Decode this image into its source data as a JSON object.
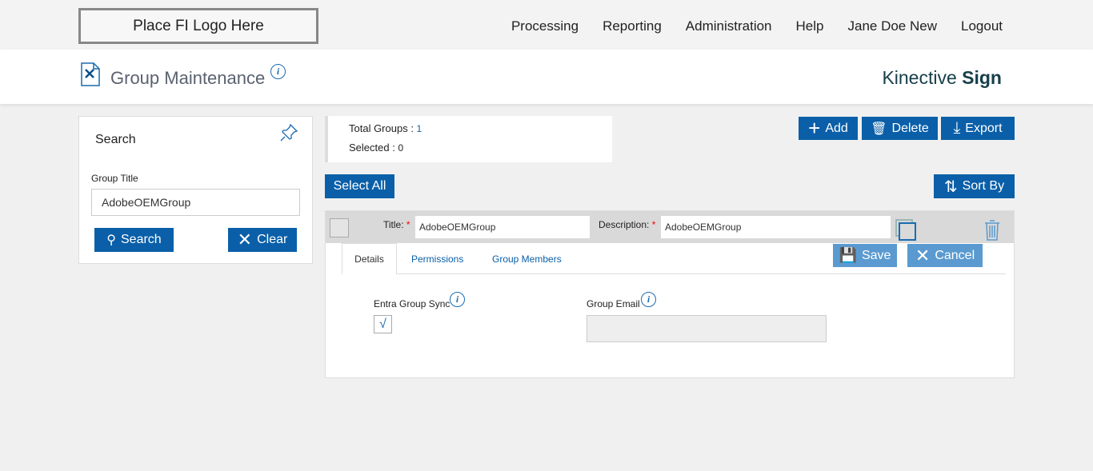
{
  "topbar": {
    "logo": "Place FI Logo Here",
    "nav": [
      "Processing",
      "Reporting",
      "Administration",
      "Help",
      "Jane Doe New",
      "Logout"
    ]
  },
  "header": {
    "title": "Group Maintenance",
    "brand_light": "Kinective ",
    "brand_bold": "Sign"
  },
  "search": {
    "title": "Search",
    "group_title_label": "Group Title",
    "group_title_value": "AdobeOEMGroup",
    "search_label": "Search",
    "clear_label": "Clear"
  },
  "summary": {
    "total_label": "Total Groups : ",
    "total": "1",
    "selected_label": "Selected : ",
    "selected": "0"
  },
  "toolbar": {
    "add": "Add",
    "delete": "Delete",
    "export": "Export",
    "select_all": "Select All",
    "sort_by": "Sort By"
  },
  "group": {
    "title_label": "Title:",
    "title_value": "AdobeOEMGroup",
    "description_label": "Description:",
    "description_value": "AdobeOEMGroup",
    "required": "*",
    "tabs": [
      "Details",
      "Permissions",
      "Group Members"
    ],
    "save": "Save",
    "cancel": "Cancel",
    "entra_label": "Entra Group Sync",
    "entra_checked": true,
    "email_label": "Group Email",
    "email_value": ""
  },
  "colors": {
    "primary": "#0a5fa8",
    "disabled": "#5a9ad0"
  }
}
